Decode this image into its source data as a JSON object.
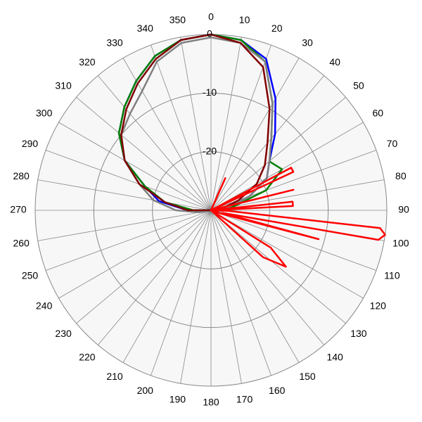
{
  "chart_data": {
    "type": "polar",
    "rlim": [
      -30,
      0
    ],
    "rticks": [
      0,
      -10,
      -20
    ],
    "thetaticks": [
      0,
      10,
      20,
      30,
      40,
      50,
      60,
      70,
      80,
      90,
      100,
      110,
      120,
      130,
      140,
      150,
      160,
      170,
      180,
      190,
      200,
      210,
      220,
      230,
      240,
      250,
      260,
      270,
      280,
      290,
      300,
      310,
      320,
      330,
      340,
      350
    ],
    "theta": [
      0,
      10,
      20,
      30,
      40,
      50,
      60,
      70,
      80,
      90,
      100,
      110,
      120,
      130,
      140,
      150,
      160,
      170,
      180,
      190,
      200,
      210,
      220,
      230,
      240,
      250,
      260,
      270,
      280,
      290,
      300,
      310,
      320,
      330,
      340,
      350
    ],
    "series": [
      {
        "color": "#0000ff",
        "values": [
          0,
          -0.5,
          -2.5,
          -8,
          -13,
          -17,
          -19,
          -23,
          -27,
          -30,
          -30,
          -30,
          -30,
          -30,
          -30,
          -30,
          -30,
          -30,
          -30,
          -30,
          -30,
          -30,
          -30,
          -30,
          -30,
          -30,
          -30,
          -26,
          -21,
          -18,
          -13,
          -9.5,
          -7,
          -4.5,
          -2,
          -0.5
        ]
      },
      {
        "color": "#008000",
        "values": [
          0,
          -0.5,
          -3,
          -9,
          -14,
          -17,
          -16,
          -20,
          -26,
          -30,
          -30,
          -30,
          -30,
          -30,
          -30,
          -30,
          -30,
          -30,
          -30,
          -30,
          -30,
          -30,
          -30,
          -30,
          -30,
          -30,
          -30,
          -27,
          -22,
          -18,
          -13,
          -9.5,
          -7,
          -4.5,
          -2,
          -0.5
        ]
      },
      {
        "color": "#808080",
        "values": [
          -0.5,
          -1,
          -3,
          -9,
          -14,
          -17,
          -19,
          -23,
          -27,
          -30,
          -30,
          -30,
          -30,
          -30,
          -30,
          -30,
          -30,
          -30,
          -30,
          -30,
          -30,
          -30,
          -30,
          -30,
          -30,
          -30,
          -28,
          -24,
          -20,
          -17,
          -13,
          -10,
          -8.5,
          -6.5,
          -3,
          -1
        ]
      },
      {
        "color": "#800000",
        "values": [
          0,
          -1,
          -4,
          -10,
          -15,
          -18,
          -21,
          -25,
          -28,
          -30,
          -30,
          -30,
          -30,
          -30,
          -30,
          -30,
          -30,
          -30,
          -30,
          -30,
          -30,
          -30,
          -30,
          -30,
          -30,
          -30,
          -30,
          -26,
          -22,
          -17,
          -13,
          -10,
          -7.5,
          -5,
          -2.5,
          -0.5
        ]
      },
      {
        "color": "#ff0000",
        "theta": [
          0,
          20,
          24,
          28,
          55,
          62,
          65,
          70,
          76,
          80,
          84,
          87,
          90,
          92,
          96,
          98,
          100,
          103,
          105,
          108,
          115,
          122,
          127,
          132,
          140,
          180,
          270,
          355
        ],
        "values": [
          -30,
          -30,
          -24,
          -30,
          -30,
          -14.5,
          -14.5,
          -30,
          -15.5,
          -30,
          -16,
          -16,
          -30,
          -27,
          -1,
          0,
          -1,
          -28,
          -11,
          -28,
          -30,
          -18,
          -14,
          -18,
          -30,
          -30,
          -30,
          -30
        ]
      }
    ]
  }
}
